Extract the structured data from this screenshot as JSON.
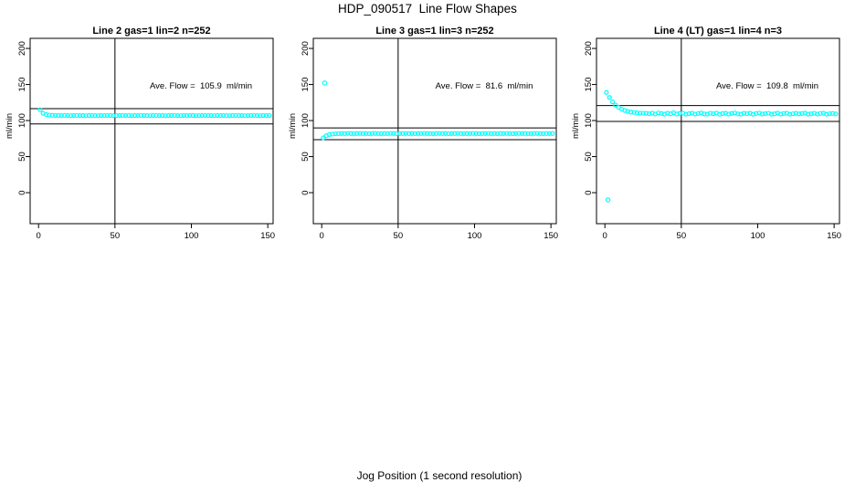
{
  "page": {
    "title": "HDP_090517  Line Flow Shapes",
    "xlabel": "Jog Position (1 second resolution)"
  },
  "colors": {
    "points": "#00ffff",
    "axis": "#000000",
    "text": "#000000",
    "background": "#ffffff"
  },
  "chart_data": [
    {
      "type": "scatter",
      "title": "Line 2 gas=1 lin=2 n=252",
      "ylabel": "ml/min",
      "ave_flow": 105.9,
      "ave_flow_label": "Ave. Flow =  105.9  ml/min",
      "ref_lines": [
        116.5,
        95.3
      ],
      "vline_x": 50,
      "x_ticks": [
        0,
        50,
        100,
        150
      ],
      "y_ticks": [
        0,
        50,
        100,
        150,
        200
      ],
      "xlim": [
        -5.5,
        153.5
      ],
      "ylim": [
        -43,
        214
      ],
      "grid": false,
      "legend": false,
      "x_start": 1,
      "x_step": 2,
      "y": [
        115,
        110,
        108.3,
        107.6,
        107.3,
        107.1,
        107,
        106.9,
        107.1,
        107,
        106.8,
        107,
        107.1,
        106.9,
        107,
        106.8,
        107,
        107.1,
        106.9,
        106.8,
        107,
        106.9,
        107.1,
        107,
        106.8,
        106.9,
        107,
        107.1,
        106.9,
        107,
        106.8,
        107,
        106.9,
        107.1,
        107,
        106.9,
        106.8,
        107,
        107.1,
        106.9,
        107,
        106.8,
        106.9,
        107,
        107.1,
        106.9,
        106.8,
        107,
        106.9,
        107.1,
        107,
        106.8,
        106.9,
        107,
        107.1,
        106.9,
        107,
        106.8,
        107,
        106.9,
        107.1,
        106.9,
        106.8,
        107,
        107.1,
        106.9,
        107,
        106.8,
        106.9,
        107,
        107.1,
        106.9,
        106.8,
        107,
        106.9,
        107
      ],
      "outliers": []
    },
    {
      "type": "scatter",
      "title": "Line 3 gas=1 lin=3 n=252",
      "ylabel": "ml/min",
      "ave_flow": 81.6,
      "ave_flow_label": "Ave. Flow =  81.6  ml/min",
      "ref_lines": [
        89.8,
        73.4
      ],
      "vline_x": 50,
      "x_ticks": [
        0,
        50,
        100,
        150
      ],
      "y_ticks": [
        0,
        50,
        100,
        150,
        200
      ],
      "xlim": [
        -5.5,
        153.5
      ],
      "ylim": [
        -43,
        214
      ],
      "grid": false,
      "legend": false,
      "x_start": 1,
      "x_step": 2,
      "y": [
        76,
        79,
        80.6,
        81.3,
        81.6,
        81.8,
        82,
        81.9,
        82.1,
        82,
        81.8,
        82,
        82.1,
        81.9,
        82,
        81.8,
        82,
        82.1,
        81.9,
        81.8,
        82,
        81.9,
        82.1,
        82,
        81.8,
        81.9,
        82,
        82.1,
        81.9,
        82,
        81.8,
        82,
        81.9,
        82.1,
        82,
        81.9,
        81.8,
        82,
        82.1,
        81.9,
        82,
        81.8,
        81.9,
        82,
        82.1,
        81.9,
        81.8,
        82,
        81.9,
        82.1,
        82,
        81.8,
        81.9,
        82,
        82.1,
        81.9,
        82,
        81.8,
        82,
        81.9,
        82.1,
        81.9,
        81.8,
        82,
        82.1,
        81.9,
        82,
        81.8,
        81.9,
        82,
        82.1,
        81.9,
        81.8,
        82,
        81.9,
        82
      ],
      "outliers": [
        [
          2,
          152
        ]
      ]
    },
    {
      "type": "scatter",
      "title": "Line 4 (LT) gas=1 lin=4 n=3",
      "ylabel": "ml/min",
      "ave_flow": 109.8,
      "ave_flow_label": "Ave. Flow =  109.8  ml/min",
      "ref_lines": [
        120.8,
        98.8
      ],
      "vline_x": 50,
      "x_ticks": [
        0,
        50,
        100,
        150
      ],
      "y_ticks": [
        0,
        50,
        100,
        150,
        200
      ],
      "xlim": [
        -5.5,
        153.5
      ],
      "ylim": [
        -43,
        214
      ],
      "grid": false,
      "legend": false,
      "x_start": 1,
      "x_step": 2,
      "y": [
        139,
        132,
        126,
        121.5,
        118.2,
        115.8,
        114,
        112.7,
        111.8,
        111.2,
        110.7,
        110.4,
        110.1,
        110,
        109.5,
        110.3,
        109,
        110.6,
        109.8,
        108.9,
        110.2,
        109.4,
        110.8,
        109.1,
        109.9,
        110.4,
        108.8,
        109.6,
        110.2,
        109,
        109.8,
        110.5,
        109.2,
        108.9,
        110.1,
        109.5,
        110.3,
        108.8,
        109.7,
        110.2,
        109,
        109.9,
        110.6,
        109.3,
        108.9,
        110,
        109.5,
        110.2,
        108.8,
        109.8,
        110.4,
        109.1,
        109.6,
        110.1,
        108.9,
        109.4,
        110.3,
        109,
        109.8,
        110.2,
        108.8,
        109.5,
        110,
        109.2,
        109.7,
        110.3,
        108.9,
        109.4,
        110.1,
        109,
        109.8,
        110.2,
        108.8,
        109.5,
        109.9,
        109.2
      ],
      "outliers": [
        [
          2,
          -10
        ]
      ]
    }
  ]
}
